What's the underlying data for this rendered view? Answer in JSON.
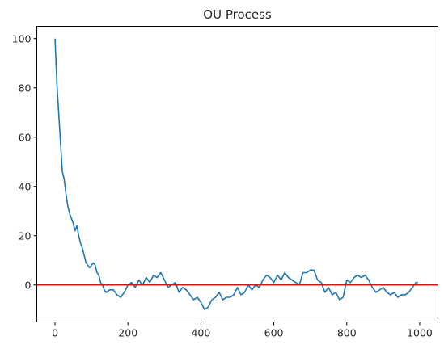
{
  "chart_data": {
    "type": "line",
    "title": "OU Process",
    "xlabel": "",
    "ylabel": "",
    "xlim": [
      -50,
      1050
    ],
    "ylim": [
      -15,
      105
    ],
    "x_ticks": [
      0,
      200,
      400,
      600,
      800,
      1000
    ],
    "y_ticks": [
      0,
      20,
      40,
      60,
      80,
      100
    ],
    "grid": false,
    "legend": "none",
    "series": [
      {
        "color": "#1f77b4",
        "x": [
          0,
          5,
          10,
          15,
          20,
          25,
          30,
          35,
          40,
          45,
          50,
          55,
          60,
          65,
          70,
          75,
          80,
          85,
          90,
          95,
          100,
          105,
          110,
          115,
          120,
          125,
          130,
          135,
          140,
          150,
          160,
          170,
          180,
          190,
          200,
          210,
          220,
          230,
          240,
          250,
          260,
          270,
          280,
          290,
          300,
          310,
          320,
          330,
          340,
          350,
          360,
          370,
          380,
          390,
          400,
          410,
          420,
          430,
          440,
          450,
          460,
          470,
          480,
          490,
          500,
          510,
          520,
          530,
          540,
          550,
          560,
          570,
          580,
          590,
          600,
          610,
          620,
          630,
          640,
          650,
          660,
          670,
          680,
          690,
          700,
          710,
          720,
          730,
          740,
          750,
          760,
          770,
          780,
          790,
          800,
          810,
          820,
          830,
          840,
          850,
          860,
          870,
          880,
          890,
          900,
          910,
          920,
          930,
          940,
          950,
          960,
          970,
          980,
          990,
          995
        ],
        "values": [
          100,
          82,
          70,
          58,
          46,
          43,
          37,
          32,
          29,
          27,
          25,
          22,
          24,
          20,
          17,
          15,
          12,
          9,
          8,
          7,
          8,
          9,
          8,
          5,
          4,
          1,
          0,
          -2,
          -3,
          -2,
          -2,
          -4,
          -5,
          -3,
          0,
          1,
          -1,
          2,
          0,
          3,
          1,
          4,
          3,
          5,
          2,
          -1,
          0,
          1,
          -3,
          -1,
          -2,
          -4,
          -6,
          -5,
          -7,
          -10,
          -9,
          -6,
          -5,
          -3,
          -6,
          -5,
          -5,
          -4,
          -1,
          -4,
          -3,
          0,
          -2,
          0,
          -1,
          2,
          4,
          3,
          1,
          4,
          2,
          5,
          3,
          2,
          1,
          0,
          5,
          5,
          6,
          6,
          2,
          1,
          -3,
          -1,
          -4,
          -3,
          -6,
          -5,
          2,
          1,
          3,
          4,
          3,
          4,
          2,
          -1,
          -3,
          -2,
          -1,
          -3,
          -4,
          -3,
          -5,
          -4,
          -4,
          -3,
          -1,
          1,
          1
        ]
      },
      {
        "color": "#ff0000",
        "x": [
          -50,
          1050
        ],
        "values": [
          0,
          0
        ]
      }
    ]
  }
}
